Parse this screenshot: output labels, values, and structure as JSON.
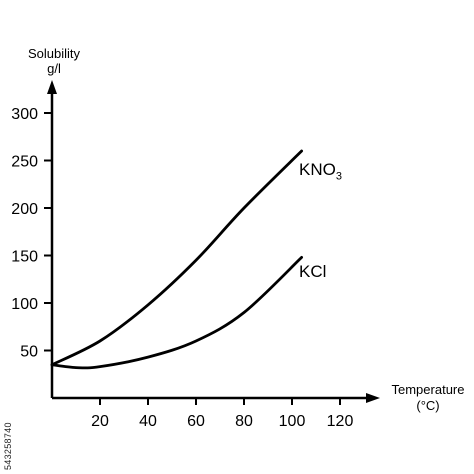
{
  "chart_data": {
    "type": "line",
    "ylabel_line1": "Solubility",
    "ylabel_line2": "g/l",
    "xlabel_line1": "Temperature",
    "xlabel_line2": "(°C)",
    "x_ticks": [
      "20",
      "40",
      "60",
      "80",
      "100",
      "120"
    ],
    "y_ticks": [
      "50",
      "100",
      "150",
      "200",
      "250",
      "300"
    ],
    "xlim": [
      0,
      140
    ],
    "ylim": [
      0,
      320
    ],
    "grid": false,
    "series": [
      {
        "name_main": "KNO",
        "name_sub": "3",
        "color": "#000000",
        "x": [
          0,
          20,
          40,
          60,
          80,
          104
        ],
        "y": [
          35,
          60,
          98,
          145,
          200,
          260
        ]
      },
      {
        "name_main": "KCl",
        "name_sub": "",
        "color": "#000000",
        "x": [
          0,
          10,
          20,
          40,
          60,
          80,
          104
        ],
        "y": [
          35,
          32,
          33,
          43,
          60,
          90,
          148
        ]
      }
    ]
  },
  "watermark_id": "543258740"
}
